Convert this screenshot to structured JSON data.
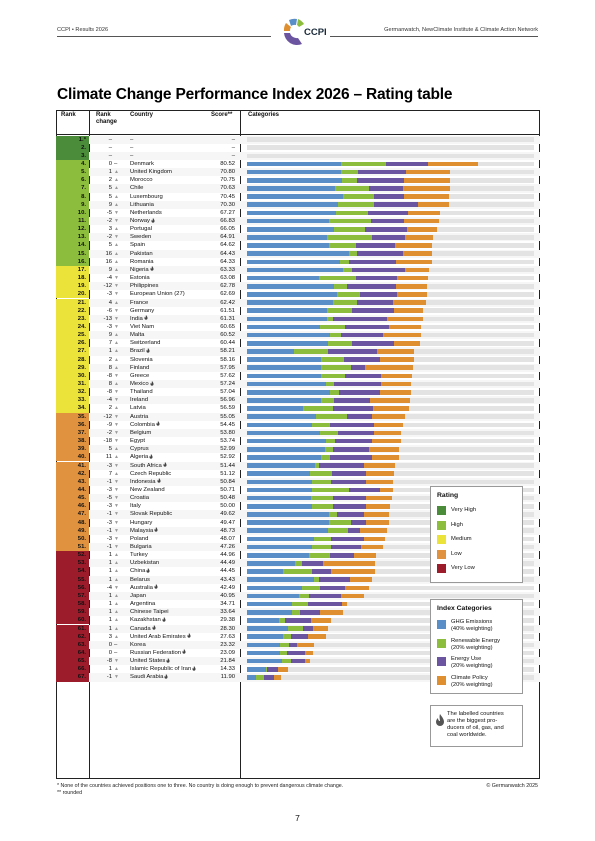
{
  "header": {
    "left": "CCPI • Results 2026",
    "right": "Germanwatch, NewClimate Institute & Climate Action Network",
    "logo_text": "CCPI"
  },
  "title": "Climate Change Performance Index 2026 – Rating table",
  "table_headers": {
    "rank": "Rank",
    "rank_change": "Rank change",
    "country": "Country",
    "score": "Score**",
    "categories": "Categories"
  },
  "colors": {
    "very_high": "#4a8c3a",
    "high": "#8cbd3c",
    "medium": "#ebe23a",
    "low": "#e0923f",
    "very_low": "#9c1c2b",
    "ghg": "#5a8ec6",
    "renewable": "#8cbd3c",
    "energy_use": "#6c55a0",
    "climate_policy": "#df8f30",
    "bar_bg": "#e3e3e3"
  },
  "rows": [
    {
      "rank": "1.*",
      "change": "–",
      "dir": "",
      "country": "–",
      "score": "–",
      "rating": "very_high",
      "fossil": false,
      "segs": [
        0,
        0,
        0,
        0
      ]
    },
    {
      "rank": "2.",
      "change": "–",
      "dir": "",
      "country": "–",
      "score": "–",
      "rating": "very_high",
      "fossil": false,
      "segs": [
        0,
        0,
        0,
        0
      ]
    },
    {
      "rank": "3.",
      "change": "–",
      "dir": "",
      "country": "–",
      "score": "–",
      "rating": "very_high",
      "fossil": false,
      "segs": [
        0,
        0,
        0,
        0
      ]
    },
    {
      "rank": "4.",
      "change": "0",
      "dir": "–",
      "country": "Denmark",
      "score": "80.52",
      "rating": "high",
      "fossil": false,
      "segs": [
        32.6,
        15.8,
        14.6,
        17.5
      ]
    },
    {
      "rank": "5.",
      "change": "1",
      "dir": "up",
      "country": "United Kingdom",
      "score": "70.80",
      "rating": "high",
      "fossil": false,
      "segs": [
        32.6,
        6.0,
        16.7,
        15.5
      ]
    },
    {
      "rank": "6.",
      "change": "2",
      "dir": "up",
      "country": "Morocco",
      "score": "70.75",
      "rating": "high",
      "fossil": false,
      "segs": [
        33.0,
        5.2,
        16.6,
        15.9
      ]
    },
    {
      "rank": "7.",
      "change": "5",
      "dir": "up",
      "country": "Chile",
      "score": "70.63",
      "rating": "high",
      "fossil": false,
      "segs": [
        30.7,
        11.7,
        12.1,
        16.1
      ]
    },
    {
      "rank": "8.",
      "change": "5",
      "dir": "up",
      "country": "Luxembourg",
      "score": "70.45",
      "rating": "high",
      "fossil": false,
      "segs": [
        33.6,
        10.6,
        10.5,
        15.8
      ]
    },
    {
      "rank": "9.",
      "change": "9",
      "dir": "up",
      "country": "Lithuania",
      "score": "70.30",
      "rating": "high",
      "fossil": false,
      "segs": [
        31.8,
        12.3,
        15.4,
        10.8
      ]
    },
    {
      "rank": "10.",
      "change": "-5",
      "dir": "down",
      "country": "Netherlands",
      "score": "67.27",
      "rating": "high",
      "fossil": false,
      "segs": [
        31.1,
        11.0,
        14.1,
        11.1
      ]
    },
    {
      "rank": "11.",
      "change": "-2",
      "dir": "down",
      "country": "Norway",
      "score": "66.83",
      "rating": "high",
      "fossil": true,
      "segs": [
        28.4,
        14.8,
        11.5,
        12.1
      ]
    },
    {
      "rank": "12.",
      "change": "3",
      "dir": "up",
      "country": "Portugal",
      "score": "66.05",
      "rating": "high",
      "fossil": false,
      "segs": [
        30.4,
        10.8,
        14.4,
        10.5
      ]
    },
    {
      "rank": "13.",
      "change": "-2",
      "dir": "down",
      "country": "Sweden",
      "score": "64.91",
      "rating": "high",
      "fossil": false,
      "segs": [
        27.8,
        15.6,
        11.5,
        10.0
      ]
    },
    {
      "rank": "14.",
      "change": "5",
      "dir": "up",
      "country": "Spain",
      "score": "64.62",
      "rating": "high",
      "fossil": false,
      "segs": [
        28.5,
        9.6,
        13.6,
        12.9
      ]
    },
    {
      "rank": "15.",
      "change": "16",
      "dir": "up",
      "country": "Pakistan",
      "score": "64.43",
      "rating": "high",
      "fossil": false,
      "segs": [
        35.5,
        3.0,
        15.8,
        10.1
      ]
    },
    {
      "rank": "16.",
      "change": "16",
      "dir": "up",
      "country": "Romania",
      "score": "64.33",
      "rating": "high",
      "fossil": false,
      "segs": [
        32.5,
        3.2,
        16.3,
        12.3
      ]
    },
    {
      "rank": "17.",
      "change": "9",
      "dir": "up",
      "country": "Nigeria",
      "score": "63.33",
      "rating": "medium",
      "fossil": true,
      "segs": [
        33.5,
        3.0,
        18.6,
        8.2
      ]
    },
    {
      "rank": "18.",
      "change": "-4",
      "dir": "down",
      "country": "Estonia",
      "score": "63.08",
      "rating": "medium",
      "fossil": false,
      "segs": [
        25.1,
        12.9,
        14.4,
        10.7
      ]
    },
    {
      "rank": "19.",
      "change": "-12",
      "dir": "down",
      "country": "Philippines",
      "score": "62.78",
      "rating": "medium",
      "fossil": false,
      "segs": [
        30.4,
        4.5,
        17.0,
        10.9
      ]
    },
    {
      "rank": "20.",
      "change": "-3",
      "dir": "down",
      "country": "European Union (27)",
      "score": "62.69",
      "rating": "medium",
      "fossil": false,
      "segs": [
        31.3,
        8.0,
        12.8,
        10.6
      ]
    },
    {
      "rank": "21.",
      "change": "4",
      "dir": "up",
      "country": "France",
      "score": "62.42",
      "rating": "medium",
      "fossil": false,
      "segs": [
        29.9,
        8.3,
        12.7,
        11.5
      ]
    },
    {
      "rank": "22.",
      "change": "-6",
      "dir": "down",
      "country": "Germany",
      "score": "61.51",
      "rating": "medium",
      "fossil": false,
      "segs": [
        27.8,
        8.7,
        14.8,
        10.2
      ]
    },
    {
      "rank": "23.",
      "change": "-13",
      "dir": "down",
      "country": "India",
      "score": "61.31",
      "rating": "medium",
      "fossil": true,
      "segs": [
        27.9,
        2.0,
        18.9,
        12.5
      ]
    },
    {
      "rank": "24.",
      "change": "-3",
      "dir": "down",
      "country": "Viet Nam",
      "score": "60.65",
      "rating": "medium",
      "fossil": false,
      "segs": [
        25.5,
        8.5,
        15.4,
        11.3
      ]
    },
    {
      "rank": "25.",
      "change": "9",
      "dir": "up",
      "country": "Malta",
      "score": "60.52",
      "rating": "medium",
      "fossil": false,
      "segs": [
        28.8,
        4.0,
        14.5,
        13.2
      ]
    },
    {
      "rank": "26.",
      "change": "7",
      "dir": "up",
      "country": "Switzerland",
      "score": "60.44",
      "rating": "medium",
      "fossil": false,
      "segs": [
        28.1,
        8.6,
        14.5,
        9.2
      ]
    },
    {
      "rank": "27.",
      "change": "1",
      "dir": "up",
      "country": "Brazil",
      "score": "58.21",
      "rating": "medium",
      "fossil": true,
      "segs": [
        16.5,
        11.7,
        17.0,
        13.0
      ]
    },
    {
      "rank": "28.",
      "change": "2",
      "dir": "up",
      "country": "Slovenia",
      "score": "58.16",
      "rating": "medium",
      "fossil": false,
      "segs": [
        25.9,
        8.0,
        12.4,
        11.8
      ]
    },
    {
      "rank": "29.",
      "change": "8",
      "dir": "up",
      "country": "Finland",
      "score": "57.95",
      "rating": "medium",
      "fossil": false,
      "segs": [
        25.8,
        10.4,
        4.9,
        16.8
      ]
    },
    {
      "rank": "30.",
      "change": "-8",
      "dir": "down",
      "country": "Greece",
      "score": "57.62",
      "rating": "medium",
      "fossil": false,
      "segs": [
        25.9,
        8.4,
        12.4,
        10.9
      ]
    },
    {
      "rank": "31.",
      "change": "8",
      "dir": "up",
      "country": "Mexico",
      "score": "57.24",
      "rating": "medium",
      "fossil": true,
      "segs": [
        27.4,
        3.0,
        16.3,
        10.5
      ]
    },
    {
      "rank": "32.",
      "change": "-8",
      "dir": "down",
      "country": "Thailand",
      "score": "57.04",
      "rating": "medium",
      "fossil": false,
      "segs": [
        28.9,
        3.0,
        14.3,
        10.8
      ]
    },
    {
      "rank": "33.",
      "change": "-4",
      "dir": "down",
      "country": "Ireland",
      "score": "56.96",
      "rating": "medium",
      "fossil": false,
      "segs": [
        25.9,
        4.5,
        12.5,
        14.0
      ]
    },
    {
      "rank": "34.",
      "change": "2",
      "dir": "up",
      "country": "Latvia",
      "score": "56.59",
      "rating": "medium",
      "fossil": false,
      "segs": [
        19.4,
        10.4,
        14.2,
        12.6
      ]
    },
    {
      "rank": "35.",
      "change": "-12",
      "dir": "down",
      "country": "Austria",
      "score": "55.05",
      "rating": "low",
      "fossil": false,
      "segs": [
        24.2,
        10.5,
        9.0,
        11.4
      ]
    },
    {
      "rank": "36.",
      "change": "-9",
      "dir": "down",
      "country": "Colombia",
      "score": "54.45",
      "rating": "low",
      "fossil": true,
      "segs": [
        22.7,
        6.2,
        15.5,
        10.0
      ]
    },
    {
      "rank": "37.",
      "change": "-2",
      "dir": "down",
      "country": "Belgium",
      "score": "53.80",
      "rating": "low",
      "fossil": false,
      "segs": [
        25.4,
        6.4,
        12.6,
        9.4
      ]
    },
    {
      "rank": "38.",
      "change": "-18",
      "dir": "down",
      "country": "Egypt",
      "score": "53.74",
      "rating": "low",
      "fossil": false,
      "segs": [
        27.6,
        3.1,
        12.9,
        10.1
      ]
    },
    {
      "rank": "39.",
      "change": "5",
      "dir": "up",
      "country": "Cyprus",
      "score": "52.99",
      "rating": "low",
      "fossil": false,
      "segs": [
        27.2,
        2.9,
        12.5,
        10.4
      ]
    },
    {
      "rank": "40.",
      "change": "11",
      "dir": "up",
      "country": "Algeria",
      "score": "52.92",
      "rating": "low",
      "fossil": true,
      "segs": [
        25.9,
        3.0,
        14.8,
        9.2
      ]
    },
    {
      "rank": "41.",
      "change": "-3",
      "dir": "down",
      "country": "South Africa",
      "score": "51.44",
      "rating": "low",
      "fossil": true,
      "segs": [
        23.6,
        1.5,
        15.6,
        10.7
      ]
    },
    {
      "rank": "42.",
      "change": "7",
      "dir": "up",
      "country": "Czech Republic",
      "score": "51.12",
      "rating": "low",
      "fossil": false,
      "segs": [
        22.0,
        7.5,
        12.0,
        9.6
      ]
    },
    {
      "rank": "43.",
      "change": "-1",
      "dir": "down",
      "country": "Indonesia",
      "score": "50.84",
      "rating": "low",
      "fossil": true,
      "segs": [
        22.8,
        6.3,
        12.2,
        9.5
      ]
    },
    {
      "rank": "44.",
      "change": "-3",
      "dir": "down",
      "country": "New Zealand",
      "score": "50.71",
      "rating": "low",
      "fossil": false,
      "segs": [
        22.6,
        13.0,
        10.9,
        4.2
      ]
    },
    {
      "rank": "45.",
      "change": "-5",
      "dir": "down",
      "country": "Croatia",
      "score": "50.48",
      "rating": "low",
      "fossil": false,
      "segs": [
        22.2,
        7.7,
        11.4,
        9.2
      ]
    },
    {
      "rank": "46.",
      "change": "-3",
      "dir": "down",
      "country": "Italy",
      "score": "50.00",
      "rating": "low",
      "fossil": false,
      "segs": [
        22.5,
        7.6,
        11.2,
        8.7
      ]
    },
    {
      "rank": "47.",
      "change": "-1",
      "dir": "down",
      "country": "Slovak Republic",
      "score": "49.62",
      "rating": "low",
      "fossil": false,
      "segs": [
        28.4,
        3.1,
        9.4,
        8.7
      ]
    },
    {
      "rank": "48.",
      "change": "-3",
      "dir": "down",
      "country": "Hungary",
      "score": "49.47",
      "rating": "low",
      "fossil": false,
      "segs": [
        28.6,
        7.6,
        5.3,
        8.0
      ]
    },
    {
      "rank": "49.",
      "change": "-1",
      "dir": "down",
      "country": "Malaysia",
      "score": "48.73",
      "rating": "low",
      "fossil": true,
      "segs": [
        28.3,
        6.8,
        4.1,
        9.5
      ]
    },
    {
      "rank": "50.",
      "change": "-3",
      "dir": "down",
      "country": "Poland",
      "score": "48.07",
      "rating": "low",
      "fossil": false,
      "segs": [
        23.2,
        6.2,
        11.2,
        7.5
      ]
    },
    {
      "rank": "51.",
      "change": "-1",
      "dir": "down",
      "country": "Bulgaria",
      "score": "47.26",
      "rating": "low",
      "fossil": false,
      "segs": [
        22.6,
        6.5,
        10.6,
        7.6
      ]
    },
    {
      "rank": "52.",
      "change": "1",
      "dir": "up",
      "country": "Turkey",
      "score": "44.96",
      "rating": "very_low",
      "fossil": false,
      "segs": [
        21.7,
        7.2,
        8.4,
        7.7
      ]
    },
    {
      "rank": "53.",
      "change": "1",
      "dir": "up",
      "country": "Uzbekistan",
      "score": "44.49",
      "rating": "very_low",
      "fossil": false,
      "segs": [
        16.8,
        2.2,
        7.6,
        17.9
      ]
    },
    {
      "rank": "54.",
      "change": "1",
      "dir": "up",
      "country": "China",
      "score": "44.45",
      "rating": "very_low",
      "fossil": true,
      "segs": [
        12.7,
        10.0,
        6.6,
        15.2
      ]
    },
    {
      "rank": "55.",
      "change": "1",
      "dir": "up",
      "country": "Belarus",
      "score": "43.43",
      "rating": "very_low",
      "fossil": false,
      "segs": [
        23.5,
        1.5,
        10.8,
        7.7
      ]
    },
    {
      "rank": "56.",
      "change": "-4",
      "dir": "down",
      "country": "Australia",
      "score": "42.49",
      "rating": "very_low",
      "fossil": true,
      "segs": [
        19.0,
        6.4,
        8.9,
        8.2
      ]
    },
    {
      "rank": "57.",
      "change": "1",
      "dir": "up",
      "country": "Japan",
      "score": "40.95",
      "rating": "very_low",
      "fossil": false,
      "segs": [
        18.0,
        3.6,
        11.3,
        8.0
      ]
    },
    {
      "rank": "58.",
      "change": "1",
      "dir": "up",
      "country": "Argentina",
      "score": "34.71",
      "rating": "very_low",
      "fossil": false,
      "segs": [
        15.7,
        5.7,
        11.7,
        1.6
      ]
    },
    {
      "rank": "59.",
      "change": "1",
      "dir": "up",
      "country": "Chinese Taipei",
      "score": "33.64",
      "rating": "very_low",
      "fossil": false,
      "segs": [
        15.7,
        2.8,
        6.9,
        8.2
      ]
    },
    {
      "rank": "60.",
      "change": "1",
      "dir": "up",
      "country": "Kazakhstan",
      "score": "29.38",
      "rating": "very_low",
      "fossil": true,
      "segs": [
        11.1,
        2.0,
        9.1,
        7.2
      ]
    },
    {
      "rank": "61.",
      "change": "1",
      "dir": "up",
      "country": "Canada",
      "score": "28.30",
      "rating": "very_low",
      "fossil": true,
      "segs": [
        14.3,
        5.1,
        3.5,
        5.4
      ]
    },
    {
      "rank": "62.",
      "change": "3",
      "dir": "up",
      "country": "United Arab Emirates",
      "score": "27.63",
      "rating": "very_low",
      "fossil": true,
      "segs": [
        12.5,
        2.9,
        5.8,
        6.4
      ]
    },
    {
      "rank": "63.",
      "change": "0",
      "dir": "–",
      "country": "Korea",
      "score": "23.32",
      "rating": "very_low",
      "fossil": false,
      "segs": [
        11.4,
        3.3,
        2.8,
        5.8
      ]
    },
    {
      "rank": "64.",
      "change": "0",
      "dir": "–",
      "country": "Russian Federation",
      "score": "23.09",
      "rating": "very_low",
      "fossil": true,
      "segs": [
        11.5,
        2.3,
        6.5,
        2.8
      ]
    },
    {
      "rank": "65.",
      "change": "-8",
      "dir": "down",
      "country": "United States",
      "score": "21.84",
      "rating": "very_low",
      "fossil": true,
      "segs": [
        12.2,
        3.0,
        5.1,
        1.5
      ]
    },
    {
      "rank": "66.",
      "change": "1",
      "dir": "up",
      "country": "Islamic Republic of Iran",
      "score": "14.33",
      "rating": "very_low",
      "fossil": true,
      "segs": [
        6.7,
        0.4,
        3.8,
        3.4
      ]
    },
    {
      "rank": "67.",
      "change": "-1",
      "dir": "down",
      "country": "Saudi Arabia",
      "score": "11.90",
      "rating": "very_low",
      "fossil": true,
      "segs": [
        3.1,
        2.8,
        3.5,
        2.5
      ]
    }
  ],
  "legend_rating": {
    "title": "Rating",
    "items": [
      {
        "label": "Very High",
        "color": "#4a8c3a"
      },
      {
        "label": "High",
        "color": "#8cbd3c"
      },
      {
        "label": "Medium",
        "color": "#ebe23a"
      },
      {
        "label": "Low",
        "color": "#e0923f"
      },
      {
        "label": "Very Low",
        "color": "#9c1c2b"
      }
    ]
  },
  "legend_categories": {
    "title": "Index Categories",
    "items": [
      {
        "label1": "GHG Emissions",
        "label2": "(40% weighting)",
        "color": "#5a8ec6"
      },
      {
        "label1": "Renewable Energy",
        "label2": "(20% weighting)",
        "color": "#8cbd3c"
      },
      {
        "label1": "Energy Use",
        "label2": "(20% weighting)",
        "color": "#6c55a0"
      },
      {
        "label1": "Climate Policy",
        "label2": "(20% weighting)",
        "color": "#df8f30"
      }
    ]
  },
  "fossil_note": {
    "line1": "The labelled countries",
    "line2": "are the biggest pro-",
    "line3": "ducers of oil, gas, and",
    "line4": "coal worldwide."
  },
  "footnotes": {
    "note1": "* None of the countries achieved positions one to three. No country is doing enough to prevent dangerous climate change.",
    "note2": "** rounded"
  },
  "copyright": "© Germanwatch 2025",
  "page_number": "7"
}
